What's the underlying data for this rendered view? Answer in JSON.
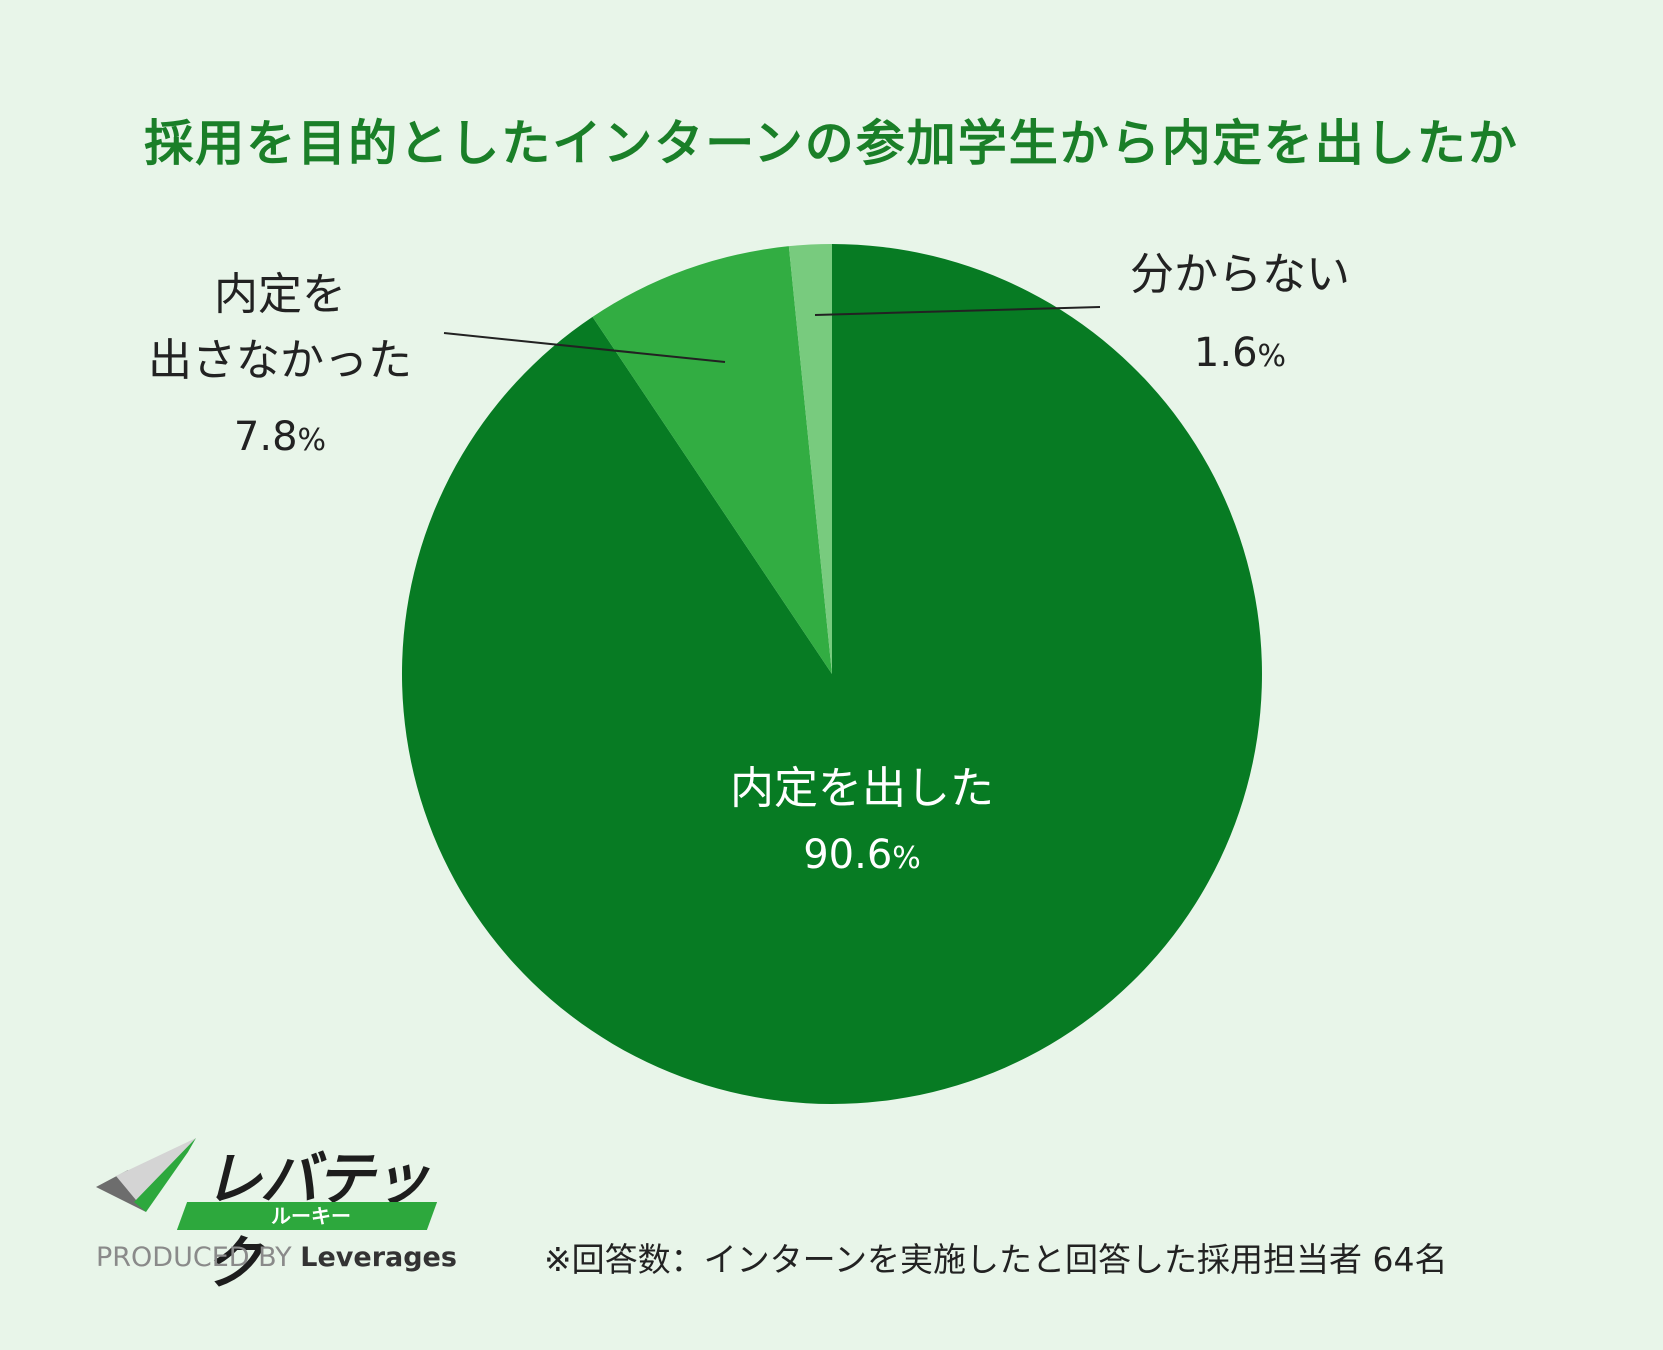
{
  "title": "採用を目的としたインターンの参加学生から内定を出したか",
  "chart_data": {
    "type": "pie",
    "title": "採用を目的としたインターンの参加学生から内定を出したか",
    "start": "12 o'clock",
    "direction": "clockwise",
    "slices": [
      {
        "label": "内定を出した",
        "value": 90.6,
        "value_text": "90.6",
        "color": "#077b23"
      },
      {
        "label_lines": [
          "内定を",
          "出さなかった"
        ],
        "value": 7.8,
        "value_text": "7.8",
        "color": "#32ad42"
      },
      {
        "label": "分からない",
        "value": 1.6,
        "value_text": "1.6",
        "color": "#78cb7e"
      }
    ],
    "unit": "%"
  },
  "logo": {
    "name": "レバテック",
    "sub": "ルーキー",
    "produced_by": "PRODUCED BY",
    "brand": "Leverages"
  },
  "footnote": "※回答数：インターンを実施したと回答した採用担当者 64名"
}
